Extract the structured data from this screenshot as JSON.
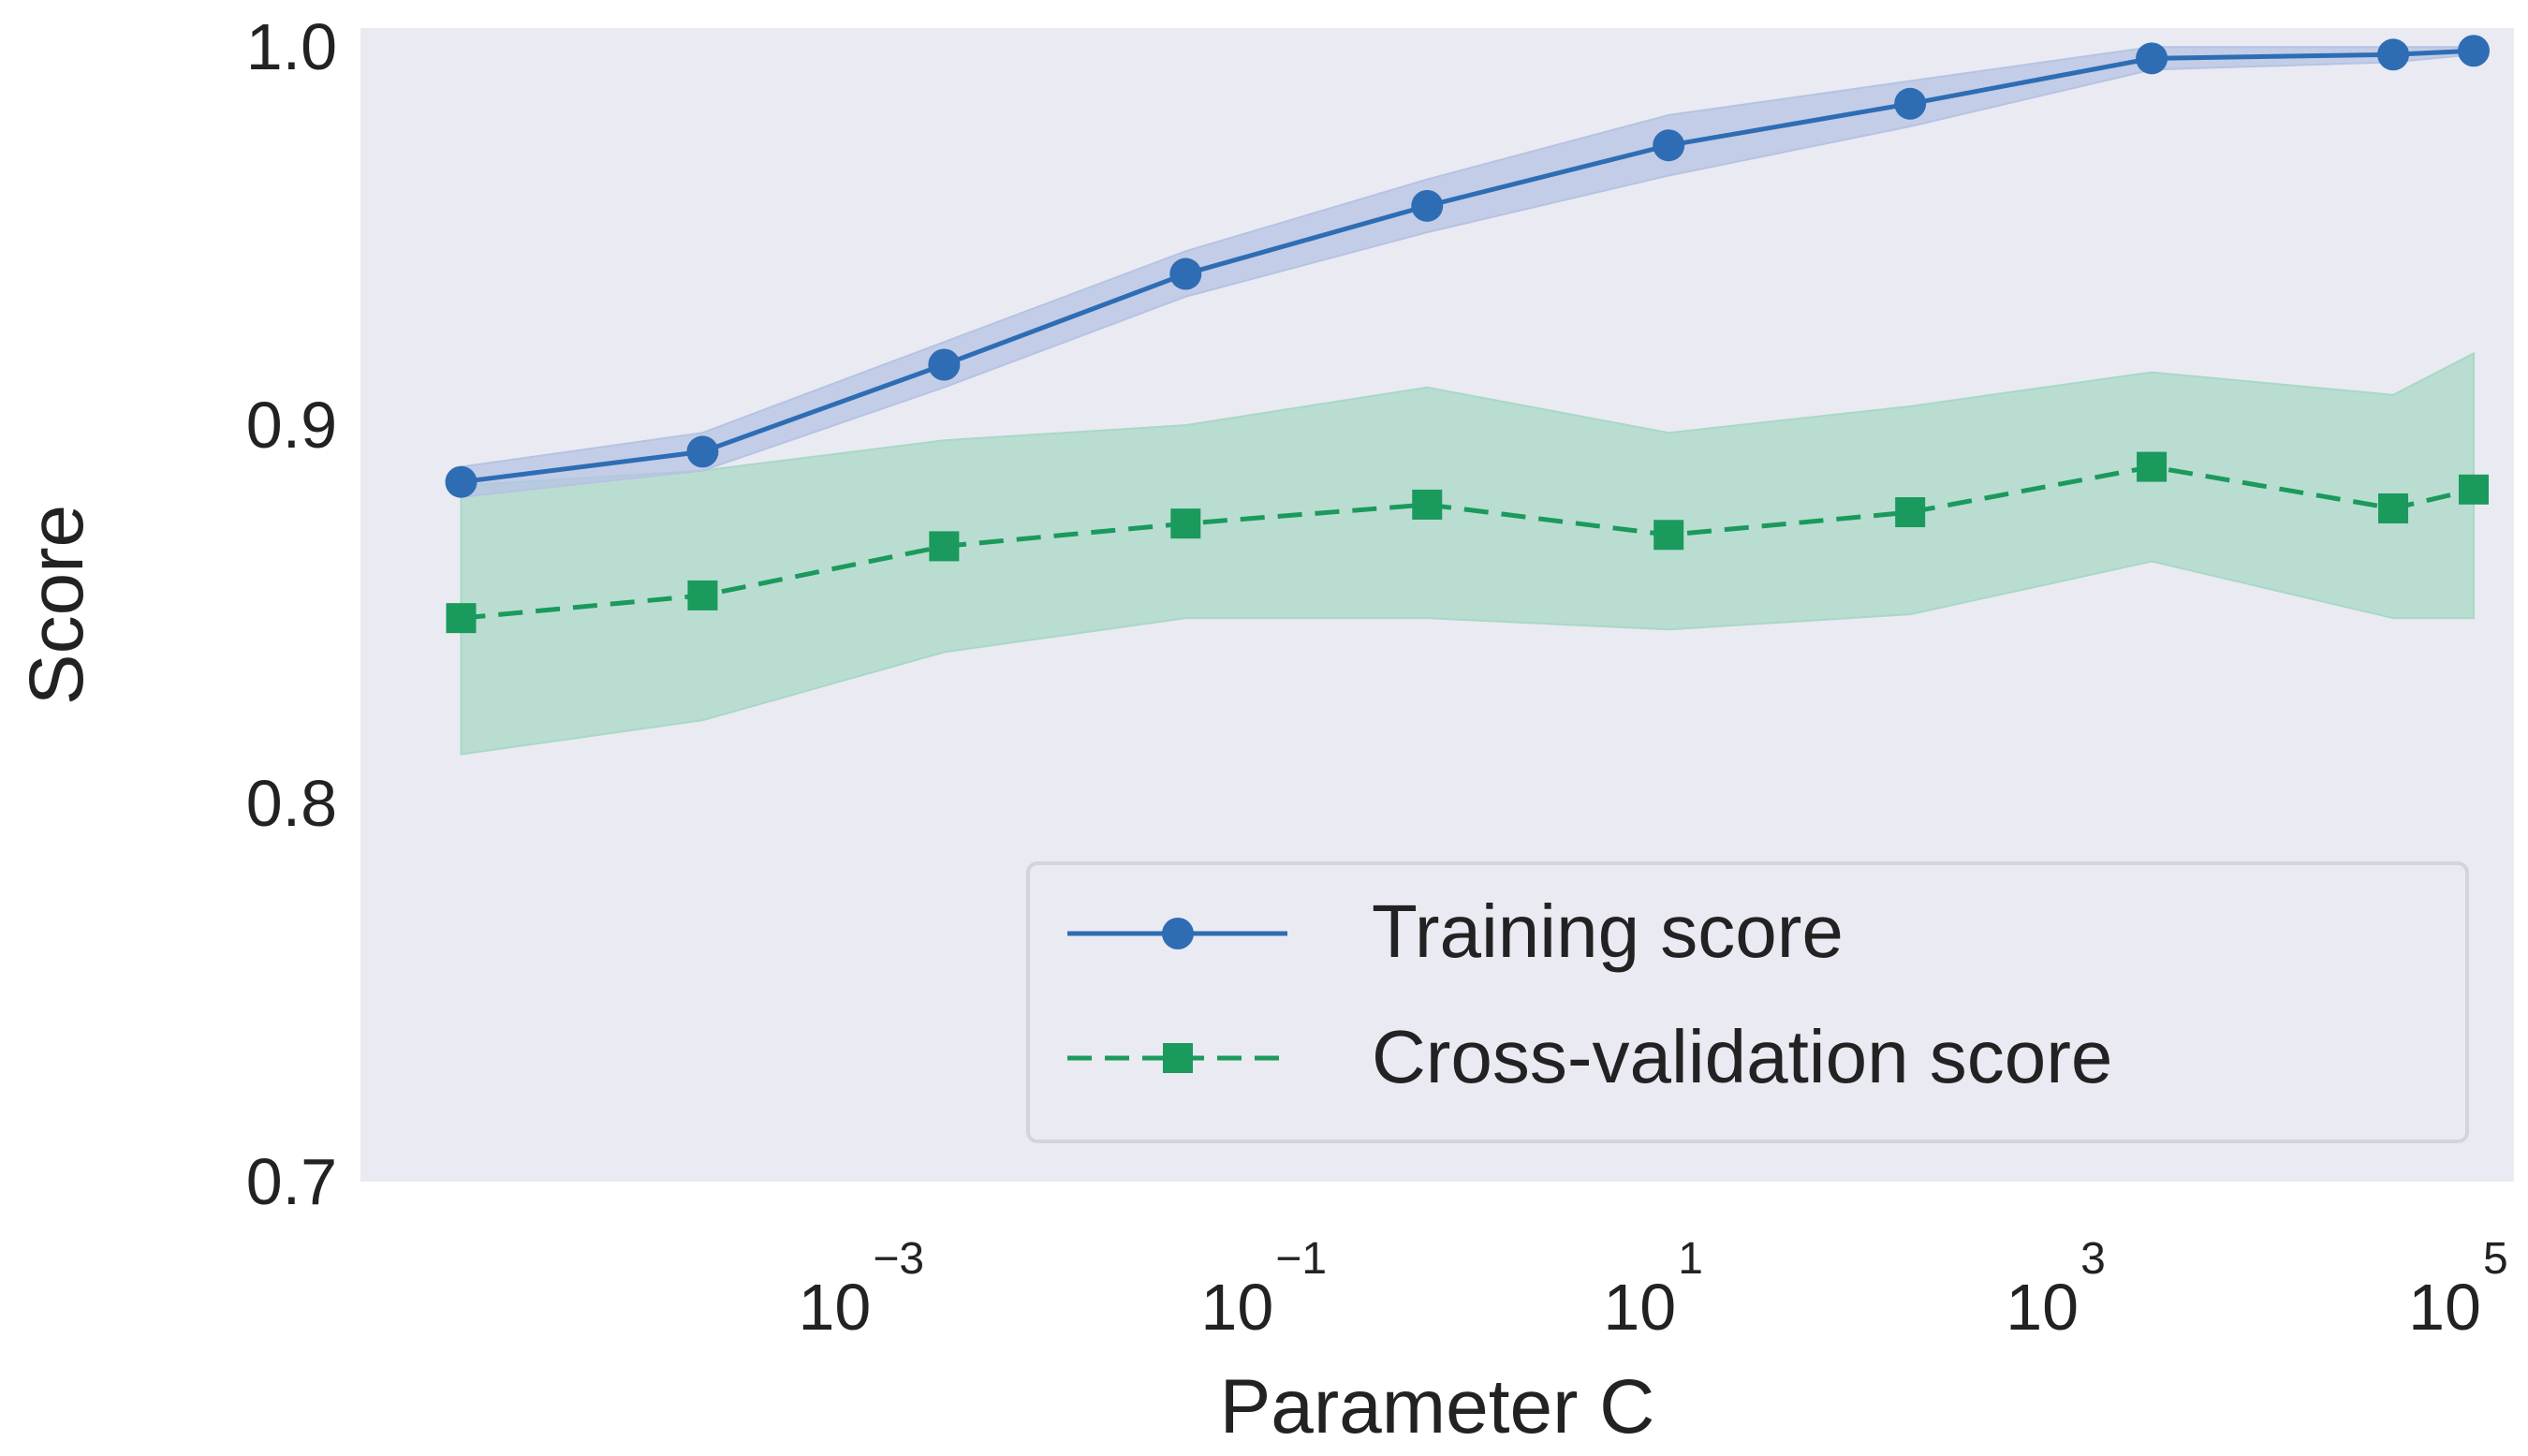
{
  "chart_data": {
    "type": "line",
    "title": "",
    "xlabel": "Parameter C",
    "ylabel": "Score",
    "xscale": "log",
    "x_exponent_range": [
      -5.5,
      5.2
    ],
    "ylim": [
      0.7,
      1.005
    ],
    "x_exponents": [
      -5,
      -3.8,
      -2.6,
      -1.4,
      -0.2,
      1,
      2.2,
      3.4,
      4.6,
      5
    ],
    "x_ticks": [
      {
        "base": "10",
        "exp": "−3",
        "value": -3
      },
      {
        "base": "10",
        "exp": "−1",
        "value": -1
      },
      {
        "base": "10",
        "exp": "1",
        "value": 1
      },
      {
        "base": "10",
        "exp": "3",
        "value": 3
      },
      {
        "base": "10",
        "exp": "5",
        "value": 5
      }
    ],
    "y_ticks": [
      {
        "label": "0.7",
        "value": 0.7
      },
      {
        "label": "0.8",
        "value": 0.8
      },
      {
        "label": "0.9",
        "value": 0.9
      },
      {
        "label": "1.0",
        "value": 1.0
      }
    ],
    "grid": false,
    "legend_position": "bottom-right",
    "series": [
      {
        "name": "Training score",
        "color": "#2e6db4",
        "marker": "circle",
        "linestyle": "solid",
        "values": [
          0.885,
          0.893,
          0.916,
          0.94,
          0.958,
          0.974,
          0.985,
          0.997,
          0.998,
          0.999
        ],
        "band_lower": [
          0.881,
          0.888,
          0.91,
          0.934,
          0.951,
          0.966,
          0.979,
          0.994,
          0.996,
          0.998
        ],
        "band_upper": [
          0.889,
          0.898,
          0.922,
          0.946,
          0.965,
          0.982,
          0.991,
          1.0,
          1.0,
          1.0
        ]
      },
      {
        "name": "Cross-validation score",
        "color": "#1a9a5c",
        "marker": "square",
        "linestyle": "dashed",
        "values": [
          0.849,
          0.855,
          0.868,
          0.874,
          0.879,
          0.871,
          0.877,
          0.889,
          0.878,
          0.883
        ],
        "band_lower": [
          0.813,
          0.822,
          0.84,
          0.849,
          0.849,
          0.846,
          0.85,
          0.864,
          0.849,
          0.849
        ],
        "band_upper": [
          0.884,
          0.888,
          0.896,
          0.9,
          0.91,
          0.898,
          0.905,
          0.914,
          0.908,
          0.919
        ]
      }
    ]
  },
  "colors": {
    "plot_background": "#eaeaf2",
    "training_band": "#b6c3e3",
    "cv_band": "#a9d8c6",
    "legend_background": "#eaeaf2",
    "legend_border": "#d4d4dc"
  }
}
